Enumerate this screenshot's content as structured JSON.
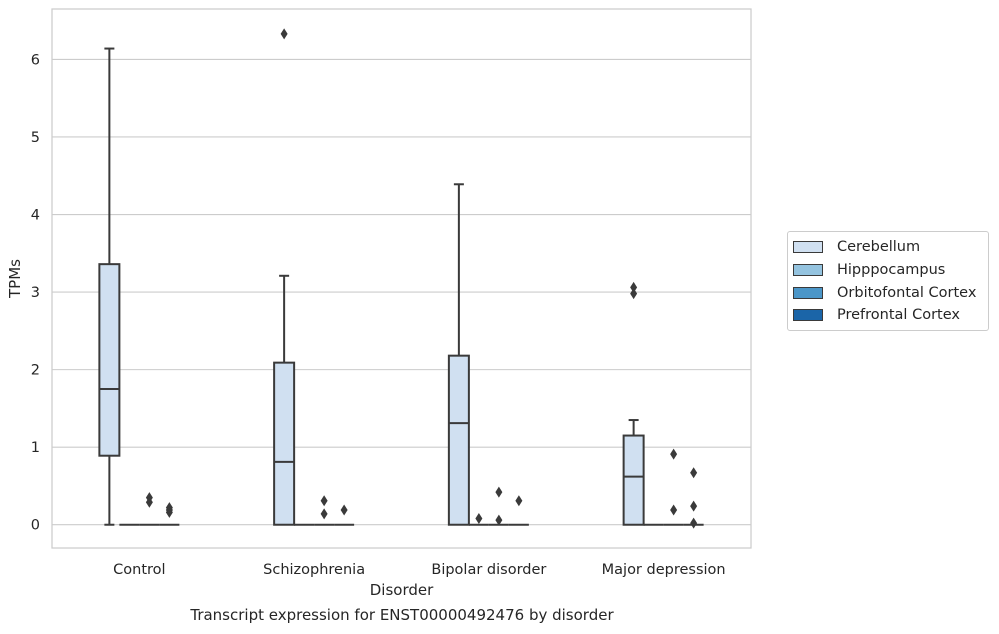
{
  "caption": "Transcript expression for ENST00000492476 by disorder",
  "chart_data": {
    "type": "box",
    "xlabel": "Disorder",
    "ylabel": "TPMs",
    "categories": [
      "Control",
      "Schizophrenia",
      "Bipolar disorder",
      "Major depression"
    ],
    "ylim": [
      -0.3,
      6.65
    ],
    "yticks": [
      0,
      1,
      2,
      3,
      4,
      5,
      6
    ],
    "grid": true,
    "legend_position": "right",
    "hue_order": [
      "Cerebellum",
      "Hipppocampus",
      "Orbitofontal Cortex",
      "Prefrontal Cortex"
    ],
    "colors": {
      "Cerebellum": "#d0e0f1",
      "Hipppocampus": "#94c3df",
      "Orbitofontal Cortex": "#4b96c8",
      "Prefrontal Cortex": "#1b65a8"
    },
    "boxes": [
      {
        "category": "Control",
        "series": "Cerebellum",
        "whislo": 0.0,
        "q1": 0.89,
        "med": 1.75,
        "q3": 3.36,
        "whishi": 6.14,
        "fliers": []
      },
      {
        "category": "Control",
        "series": "Hipppocampus",
        "whislo": 0,
        "q1": 0,
        "med": 0,
        "q3": 0,
        "whishi": 0,
        "fliers": []
      },
      {
        "category": "Control",
        "series": "Orbitofontal Cortex",
        "whislo": 0,
        "q1": 0,
        "med": 0,
        "q3": 0,
        "whishi": 0,
        "fliers": [
          0.35,
          0.29
        ]
      },
      {
        "category": "Control",
        "series": "Prefrontal Cortex",
        "whislo": 0,
        "q1": 0,
        "med": 0,
        "q3": 0,
        "whishi": 0,
        "fliers": [
          0.22,
          0.19,
          0.16
        ]
      },
      {
        "category": "Schizophrenia",
        "series": "Cerebellum",
        "whislo": 0.0,
        "q1": 0.0,
        "med": 0.81,
        "q3": 2.09,
        "whishi": 3.21,
        "fliers": [
          6.33
        ]
      },
      {
        "category": "Schizophrenia",
        "series": "Hipppocampus",
        "whislo": 0,
        "q1": 0,
        "med": 0,
        "q3": 0,
        "whishi": 0,
        "fliers": []
      },
      {
        "category": "Schizophrenia",
        "series": "Orbitofontal Cortex",
        "whislo": 0,
        "q1": 0,
        "med": 0,
        "q3": 0,
        "whishi": 0,
        "fliers": [
          0.31,
          0.14
        ]
      },
      {
        "category": "Schizophrenia",
        "series": "Prefrontal Cortex",
        "whislo": 0,
        "q1": 0,
        "med": 0,
        "q3": 0,
        "whishi": 0,
        "fliers": [
          0.19
        ]
      },
      {
        "category": "Bipolar disorder",
        "series": "Cerebellum",
        "whislo": 0.0,
        "q1": 0.0,
        "med": 1.31,
        "q3": 2.18,
        "whishi": 4.39,
        "fliers": []
      },
      {
        "category": "Bipolar disorder",
        "series": "Hipppocampus",
        "whislo": 0,
        "q1": 0,
        "med": 0,
        "q3": 0,
        "whishi": 0,
        "fliers": [
          0.08
        ]
      },
      {
        "category": "Bipolar disorder",
        "series": "Orbitofontal Cortex",
        "whislo": 0,
        "q1": 0,
        "med": 0,
        "q3": 0,
        "whishi": 0,
        "fliers": [
          0.42,
          0.06
        ]
      },
      {
        "category": "Bipolar disorder",
        "series": "Prefrontal Cortex",
        "whislo": 0,
        "q1": 0,
        "med": 0,
        "q3": 0,
        "whishi": 0,
        "fliers": [
          0.31
        ]
      },
      {
        "category": "Major depression",
        "series": "Cerebellum",
        "whislo": 0.0,
        "q1": 0.0,
        "med": 0.62,
        "q3": 1.15,
        "whishi": 1.35,
        "fliers": [
          3.06,
          2.98
        ]
      },
      {
        "category": "Major depression",
        "series": "Hipppocampus",
        "whislo": 0,
        "q1": 0,
        "med": 0,
        "q3": 0,
        "whishi": 0,
        "fliers": []
      },
      {
        "category": "Major depression",
        "series": "Orbitofontal Cortex",
        "whislo": 0,
        "q1": 0,
        "med": 0,
        "q3": 0,
        "whishi": 0,
        "fliers": [
          0.91,
          0.19
        ]
      },
      {
        "category": "Major depression",
        "series": "Prefrontal Cortex",
        "whislo": 0,
        "q1": 0,
        "med": 0,
        "q3": 0,
        "whishi": 0,
        "fliers": [
          0.67,
          0.24,
          0.02
        ]
      }
    ]
  }
}
